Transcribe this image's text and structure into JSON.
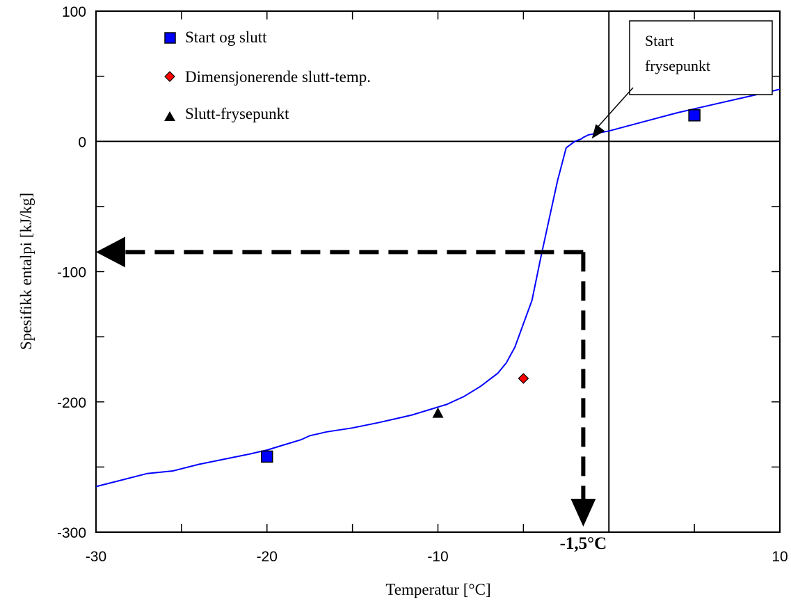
{
  "chart_data": {
    "type": "line",
    "xlabel": "Temperatur  [°C]",
    "ylabel": "Spesifikk entalpi  [kJ/kg]",
    "xlim": [
      -30,
      10
    ],
    "ylim": [
      -300,
      100
    ],
    "x_ticks": [
      -30,
      -20,
      -10,
      10
    ],
    "x_tick_labels": [
      "-30",
      "-20",
      "-10",
      "10"
    ],
    "y_ticks": [
      -300,
      -200,
      -100,
      0,
      100
    ],
    "y_tick_labels": [
      "-300",
      "-200",
      "-100",
      "0",
      "100"
    ],
    "grid": false,
    "marked_x_label": "-1,5°C",
    "curve": {
      "color": "#0000ff",
      "x": [
        -30,
        -28.5,
        -27,
        -25.5,
        -24,
        -22.5,
        -21,
        -20,
        -19,
        -18,
        -17.5,
        -16.5,
        -15,
        -13.5,
        -12.5,
        -11.5,
        -11,
        -10.5,
        -10,
        -9.5,
        -9,
        -8.5,
        -8,
        -7.5,
        -7,
        -6.5,
        -6,
        -5.5,
        -5,
        -4.5,
        -4,
        -3.5,
        -3,
        -2.5,
        -2,
        -1.8,
        -1.6,
        -1.5,
        -1.2,
        0,
        2,
        4,
        6,
        8,
        10
      ],
      "y": [
        -265,
        -260,
        -255,
        -253,
        -248,
        -244,
        -240,
        -237,
        -233,
        -229,
        -226,
        -223,
        -220,
        -216,
        -213,
        -210,
        -208,
        -206,
        -204,
        -202,
        -199,
        -196,
        -192,
        -188,
        -183,
        -178,
        -170,
        -158,
        -140,
        -122,
        -90,
        -60,
        -30,
        -5,
        0,
        1,
        2,
        3,
        5,
        8,
        15,
        22,
        28,
        34,
        40
      ]
    },
    "points": {
      "start_og_slutt": [
        [
          -20,
          -242
        ],
        [
          5,
          20
        ]
      ],
      "dimensjonerende": [
        [
          -5,
          -182
        ]
      ],
      "slutt_frysepunkt": [
        [
          -10,
          -209
        ]
      ]
    },
    "legend": [
      {
        "label": "Start og slutt",
        "marker": "square",
        "color": "#0000ff"
      },
      {
        "label": "Dimensjonerende slutt-temp.",
        "marker": "diamond",
        "color": "#ff0000"
      },
      {
        "label": "Slutt-frysepunkt",
        "marker": "triangle",
        "color": "#000000"
      }
    ],
    "annotation": {
      "text_lines": [
        "Start",
        "frysepunkt"
      ],
      "target": [
        -1,
        0
      ]
    },
    "guides": {
      "horizontal_y": -85,
      "vertical_x": -1.5,
      "arrow_color": "#000000"
    },
    "reference_lines": {
      "y_zero": 0,
      "x_line": 0
    }
  }
}
